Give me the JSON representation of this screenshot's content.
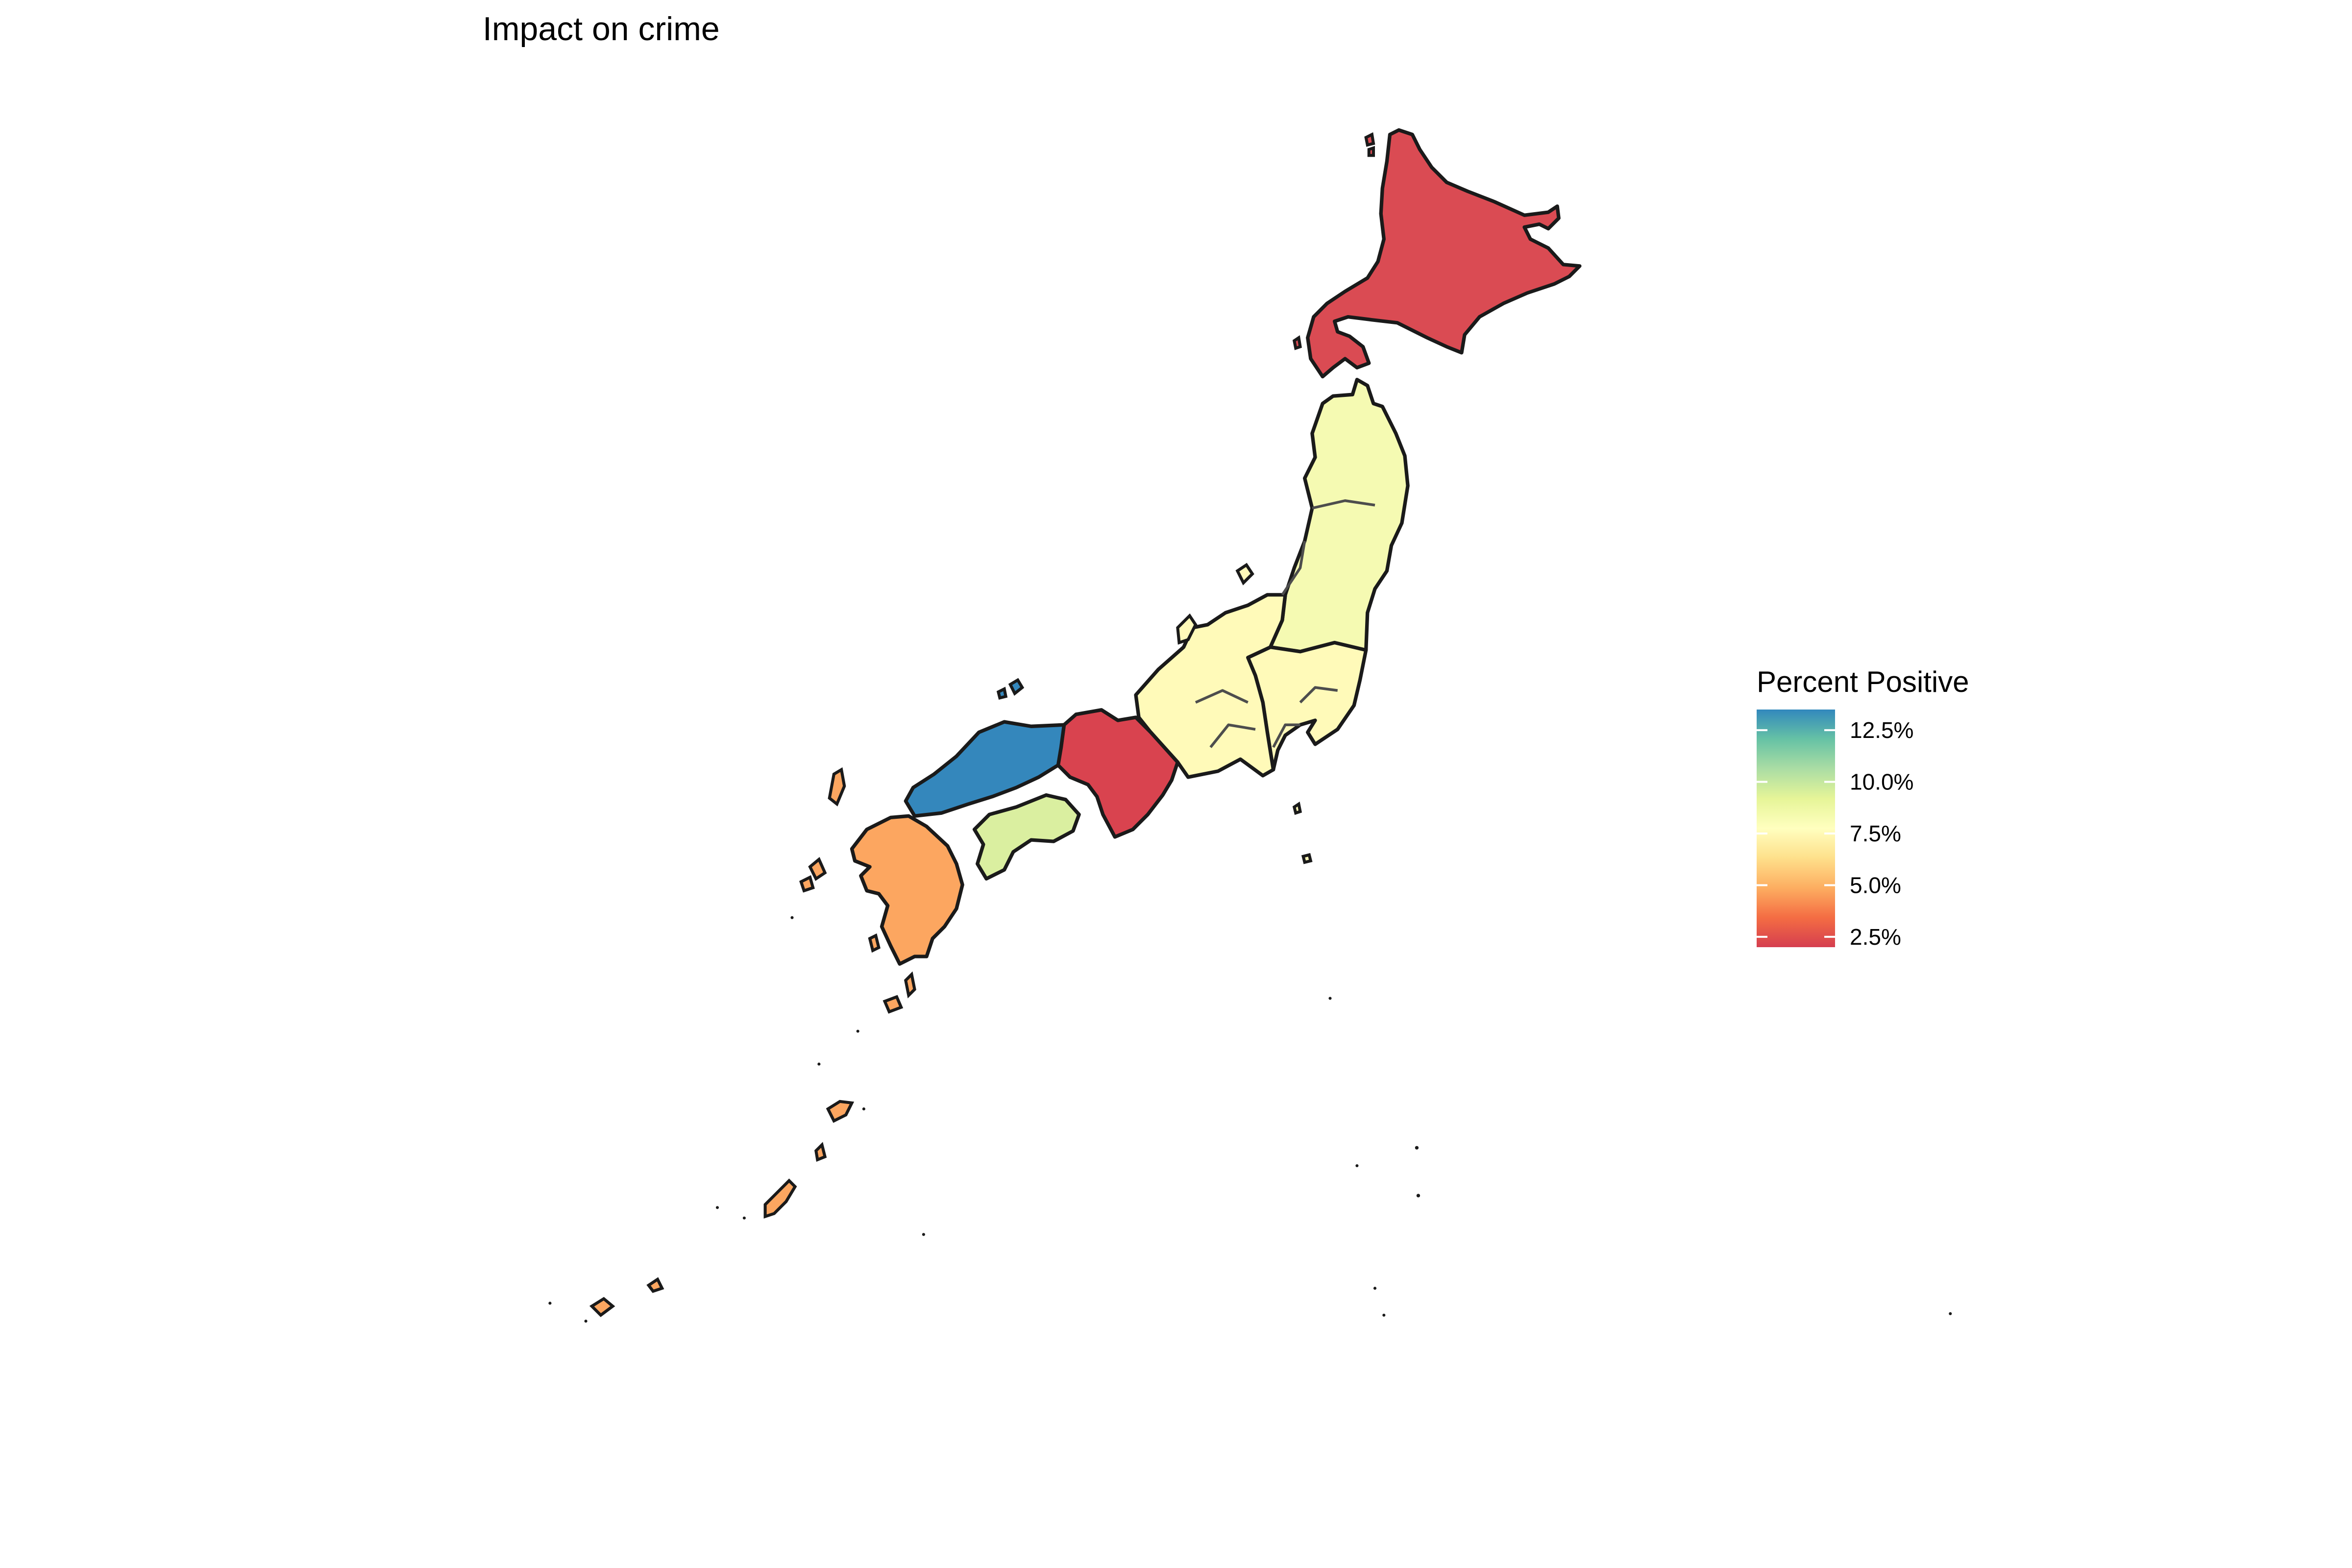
{
  "title": "Impact on crime",
  "chart_data": {
    "type": "choropleth",
    "title": "Impact on crime",
    "legend": {
      "title": "Percent Positive",
      "placement": "right",
      "min": 2.0,
      "max": 13.5,
      "ticks": [
        {
          "value": 12.5,
          "label": "12.5%"
        },
        {
          "value": 10.0,
          "label": "10.0%"
        },
        {
          "value": 7.5,
          "label": "7.5%"
        },
        {
          "value": 5.0,
          "label": "5.0%"
        },
        {
          "value": 2.5,
          "label": "2.5%"
        }
      ],
      "palette": [
        "#D53E4F",
        "#F46D43",
        "#FDAE61",
        "#FEE08B",
        "#FFFFBF",
        "#E6F598",
        "#ABDDA4",
        "#66C2A5",
        "#3288BD"
      ]
    },
    "regions": [
      {
        "key": "hokkaido",
        "value": 2.5,
        "color": "#DA4B53"
      },
      {
        "key": "tohoku",
        "value": 7.5,
        "color": "#F5FAB2"
      },
      {
        "key": "kanto",
        "value": 6.8,
        "color": "#FFFAB9"
      },
      {
        "key": "chubu",
        "value": 6.8,
        "color": "#FFFAB9"
      },
      {
        "key": "kinki",
        "value": 2.4,
        "color": "#D9434F"
      },
      {
        "key": "chugoku",
        "value": 13.1,
        "color": "#3487BC"
      },
      {
        "key": "shikoku",
        "value": 8.9,
        "color": "#DAEFA0"
      },
      {
        "key": "kyushu",
        "value": 4.7,
        "color": "#FCA660"
      }
    ]
  }
}
